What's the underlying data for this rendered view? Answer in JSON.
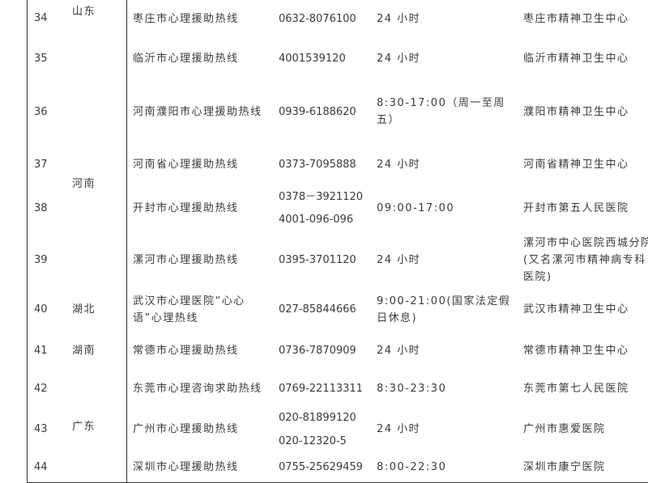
{
  "provinces": [
    {
      "name": "山东",
      "rows": [
        34,
        35
      ]
    },
    {
      "name": "河南",
      "rows": [
        36,
        37,
        38,
        39
      ]
    },
    {
      "name": "湖北",
      "rows": [
        40
      ]
    },
    {
      "name": "湖南",
      "rows": [
        41
      ]
    },
    {
      "name": "广东",
      "rows": [
        42,
        43,
        44
      ]
    }
  ],
  "rows": [
    {
      "no": "34",
      "hotline": "枣庄市心理援助热线",
      "phones": [
        "0632-8076100"
      ],
      "hours": "24 小时",
      "institution": "枣庄市精神卫生中心"
    },
    {
      "no": "35",
      "hotline": "临沂市心理援助热线",
      "phones": [
        "4001539120"
      ],
      "hours": "24 小时",
      "institution": "临沂市精神卫生中心"
    },
    {
      "no": "36",
      "hotline": "河南濮阳市心理援助热线",
      "phones": [
        "0939-6188620"
      ],
      "hours": "8:30-17:00（周一至周五）",
      "institution": "濮阳市精神卫生中心"
    },
    {
      "no": "37",
      "hotline": "河南省心理援助热线",
      "phones": [
        "0373-7095888"
      ],
      "hours": "24 小时",
      "institution": "河南省精神卫生中心"
    },
    {
      "no": "38",
      "hotline": "开封市心理援助热线",
      "phones": [
        "0378－3921120",
        "4001-096-096"
      ],
      "hours": "09:00-17:00",
      "institution": "开封市第五人民医院"
    },
    {
      "no": "39",
      "hotline": "漯河市心理援助热线",
      "phones": [
        "0395-3701120"
      ],
      "hours": "24 小时",
      "institution": "漯河市中心医院西城分院(又名漯河市精神病专科医院)"
    },
    {
      "no": "40",
      "hotline": "武汉市心理医院“心心语”心理热线",
      "phones": [
        "027-85844666"
      ],
      "hours": "9:00-21:00(国家法定假日休息)",
      "institution": "武汉市精神卫生中心"
    },
    {
      "no": "41",
      "hotline": "常德市心理援助热线",
      "phones": [
        "0736-7870909"
      ],
      "hours": "24 小时",
      "institution": "常德市精神卫生中心"
    },
    {
      "no": "42",
      "hotline": "东莞市心理咨询求助热线",
      "phones": [
        "0769-22113311"
      ],
      "hours": "8:30-23:30",
      "institution": "东莞市第七人民医院"
    },
    {
      "no": "43",
      "hotline": "广州市心理援助热线",
      "phones": [
        "020-81899120",
        "020-12320-5"
      ],
      "hours": "24 小时",
      "institution": "广州市惠爱医院"
    },
    {
      "no": "44",
      "hotline": "深圳市心理援助热线",
      "phones": [
        "0755-25629459"
      ],
      "hours": "8:00-22:30",
      "institution": "深圳市康宁医院"
    }
  ]
}
